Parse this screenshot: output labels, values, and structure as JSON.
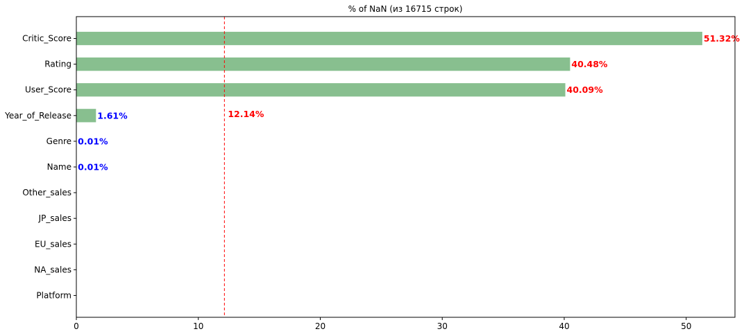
{
  "chart_data": {
    "type": "bar",
    "orientation": "horizontal",
    "title": "% of NaN (из 16715 строк)",
    "xlabel": "",
    "ylabel": "",
    "categories": [
      "Critic_Score",
      "Rating",
      "User_Score",
      "Year_of_Release",
      "Genre",
      "Name",
      "Other_sales",
      "JP_sales",
      "EU_sales",
      "NA_sales",
      "Platform"
    ],
    "values": [
      51.32,
      40.48,
      40.09,
      1.61,
      0.01,
      0.01,
      0,
      0,
      0,
      0,
      0
    ],
    "labels": [
      "51.32%",
      "40.48%",
      "40.09%",
      "1.61%",
      "0.01%",
      "0.01%",
      "",
      "",
      "",
      "",
      ""
    ],
    "label_colors": [
      "#ff0000",
      "#ff0000",
      "#ff0000",
      "#0000ff",
      "#0000ff",
      "#0000ff",
      "#0000ff",
      "#0000ff",
      "#0000ff",
      "#0000ff",
      "#0000ff"
    ],
    "bar_color": "#88bf8f",
    "xlim": [
      0,
      54
    ],
    "xticks": [
      0,
      10,
      20,
      30,
      40,
      50
    ],
    "grid": false,
    "reference_line": {
      "value": 12.14,
      "label": "12.14%",
      "color": "#ff0000",
      "style": "dashed"
    }
  }
}
